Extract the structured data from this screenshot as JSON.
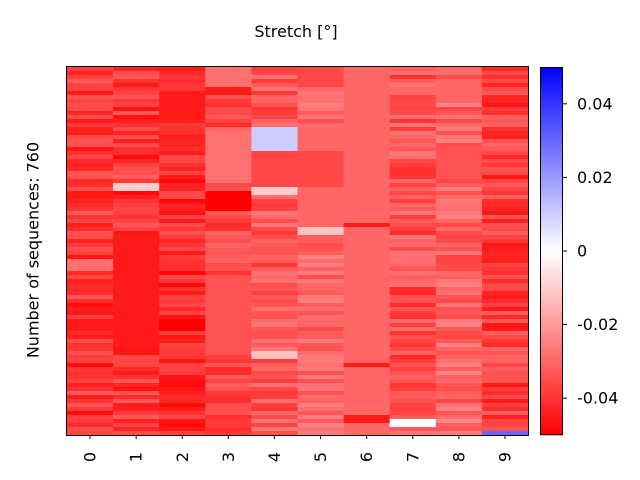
{
  "chart_data": {
    "type": "heatmap",
    "title": "Stretch [°]",
    "ylabel": "Number of sequences: 760",
    "xlabel": "",
    "categories": [
      "0",
      "1",
      "2",
      "3",
      "4",
      "5",
      "6",
      "7",
      "8",
      "9"
    ],
    "n_rows": 760,
    "colormap": "bwr",
    "colormap_colors": {
      "low": "#ff0000",
      "mid": "#ffffff",
      "high": "#0000ff"
    },
    "vmin": -0.05,
    "vmax": 0.05,
    "colorbar_ticks": [
      {
        "value": 0.04,
        "label": "0.04"
      },
      {
        "value": 0.02,
        "label": "0.02"
      },
      {
        "value": 0,
        "label": "0"
      },
      {
        "value": -0.02,
        "label": "-0.02"
      },
      {
        "value": -0.04,
        "label": "-0.04"
      }
    ],
    "columns": [
      {
        "name": "0",
        "typical": -0.04,
        "spread": 0.008,
        "bands": [
          {
            "from": 0.52,
            "to": 0.55,
            "value": -0.028
          },
          {
            "from": 0.68,
            "to": 0.72,
            "value": -0.045
          }
        ]
      },
      {
        "name": "1",
        "typical": -0.04,
        "spread": 0.008,
        "bands": [
          {
            "from": 0.32,
            "to": 0.34,
            "value": -0.01
          },
          {
            "from": 0.46,
            "to": 0.76,
            "value": -0.045
          }
        ]
      },
      {
        "name": "2",
        "typical": -0.042,
        "spread": 0.007,
        "bands": [
          {
            "from": 0.06,
            "to": 0.14,
            "value": -0.045
          },
          {
            "from": 0.68,
            "to": 0.72,
            "value": -0.05
          }
        ]
      },
      {
        "name": "3",
        "typical": -0.036,
        "spread": 0.006,
        "bands": [
          {
            "from": 0.0,
            "to": 0.05,
            "value": -0.028
          },
          {
            "from": 0.05,
            "to": 0.08,
            "value": -0.045
          },
          {
            "from": 0.17,
            "to": 0.32,
            "value": -0.028
          },
          {
            "from": 0.34,
            "to": 0.39,
            "value": -0.05
          },
          {
            "from": 0.56,
            "to": 0.78,
            "value": -0.034
          }
        ]
      },
      {
        "name": "4",
        "typical": -0.033,
        "spread": 0.007,
        "bands": [
          {
            "from": 0.16,
            "to": 0.23,
            "value": 0.01
          },
          {
            "from": 0.23,
            "to": 0.33,
            "value": -0.036
          },
          {
            "from": 0.33,
            "to": 0.35,
            "value": -0.01
          },
          {
            "from": 0.77,
            "to": 0.79,
            "value": -0.012
          }
        ]
      },
      {
        "name": "5",
        "typical": -0.03,
        "spread": 0.006,
        "bands": [
          {
            "from": 0.0,
            "to": 0.05,
            "value": -0.036
          },
          {
            "from": 0.16,
            "to": 0.23,
            "value": -0.03
          },
          {
            "from": 0.23,
            "to": 0.33,
            "value": -0.036
          },
          {
            "from": 0.33,
            "to": 0.43,
            "value": -0.03
          },
          {
            "from": 0.44,
            "to": 0.46,
            "value": -0.012
          }
        ]
      },
      {
        "name": "6",
        "typical": -0.03,
        "spread": 0.0,
        "bands": [
          {
            "from": 0.425,
            "to": 0.435,
            "value": -0.045
          },
          {
            "from": 0.51,
            "to": 0.515,
            "value": -0.04
          },
          {
            "from": 0.8,
            "to": 0.82,
            "value": -0.045
          },
          {
            "from": 0.95,
            "to": 0.97,
            "value": -0.045
          }
        ]
      },
      {
        "name": "7",
        "typical": -0.034,
        "spread": 0.008,
        "bands": [
          {
            "from": 0.96,
            "to": 0.98,
            "value": 0.0
          }
        ]
      },
      {
        "name": "8",
        "typical": -0.03,
        "spread": 0.007,
        "bands": [
          {
            "from": 0.04,
            "to": 0.1,
            "value": -0.03
          },
          {
            "from": 0.22,
            "to": 0.3,
            "value": -0.034
          }
        ]
      },
      {
        "name": "9",
        "typical": -0.038,
        "spread": 0.008,
        "bands": [
          {
            "from": 0.985,
            "to": 1.0,
            "value": 0.03
          }
        ]
      }
    ]
  }
}
